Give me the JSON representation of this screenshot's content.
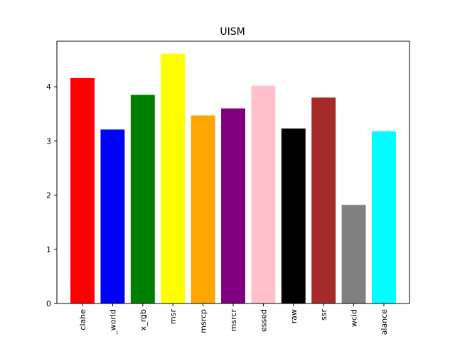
{
  "chart_data": {
    "type": "bar",
    "title": "UISM",
    "xlabel": "",
    "ylabel": "",
    "categories": [
      "clahe",
      "_world",
      "x_rgb",
      "msr",
      "msrcp",
      "msrcr",
      "essed",
      "raw",
      "ssr",
      "wcid",
      "alance"
    ],
    "values": [
      4.16,
      3.21,
      3.85,
      4.61,
      3.47,
      3.6,
      4.02,
      3.23,
      3.8,
      1.82,
      3.18
    ],
    "colors": [
      "#ff0000",
      "#0000ff",
      "#008000",
      "#ffff00",
      "#ffa500",
      "#800080",
      "#ffc0cb",
      "#000000",
      "#a52a2a",
      "#808080",
      "#00ffff"
    ],
    "yticks": [
      0,
      1,
      2,
      3,
      4
    ],
    "ylim": [
      0,
      4.84
    ],
    "grid": false,
    "legend": "none"
  }
}
